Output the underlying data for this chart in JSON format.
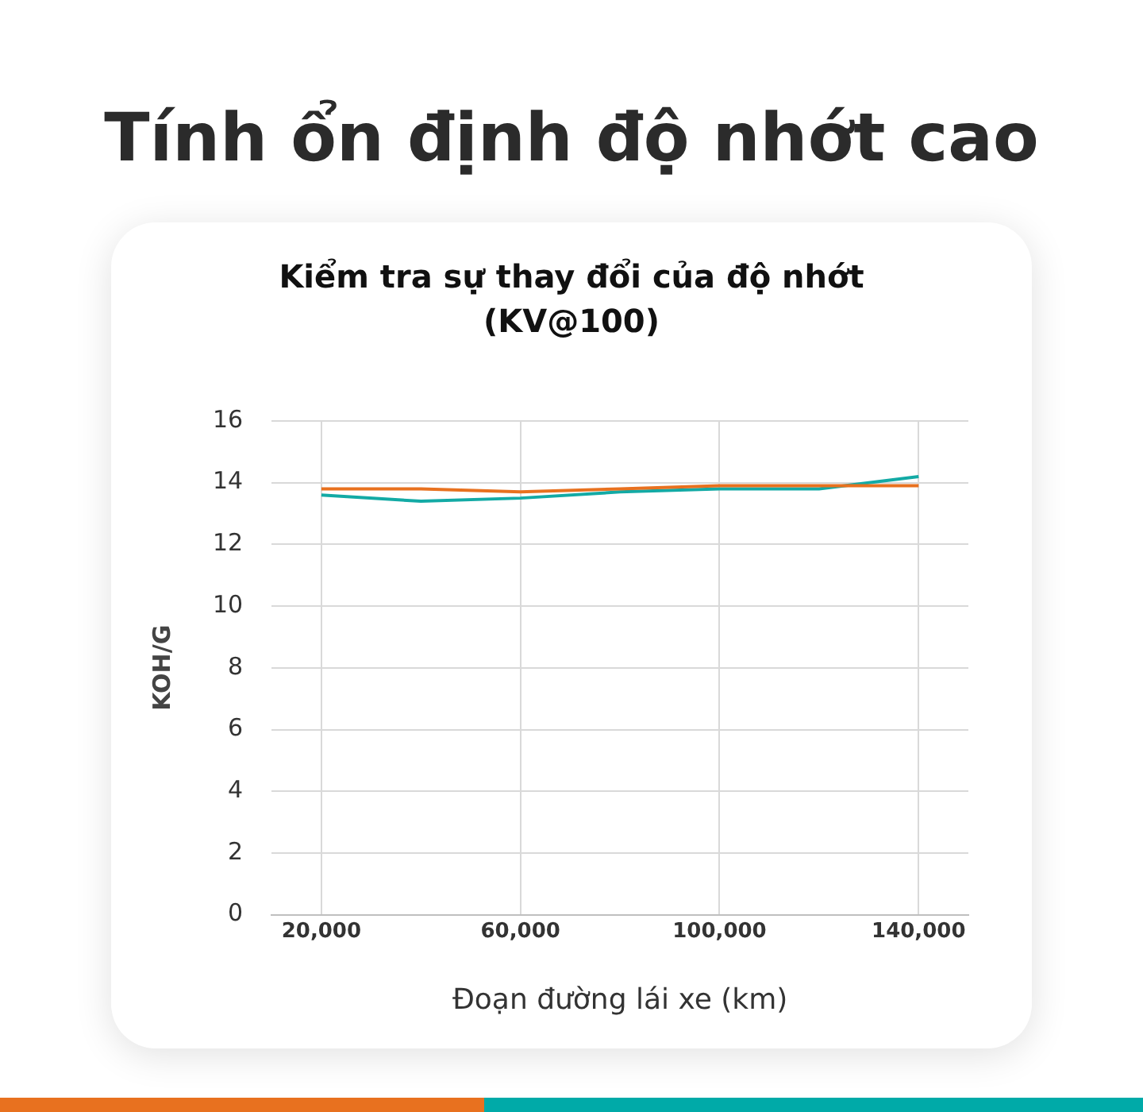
{
  "chart_data": {
    "type": "line",
    "title": "Tính ổn định độ nhớt cao",
    "subtitle": "Kiểm tra sự thay đổi của độ nhớt\n(KV@100)",
    "xlabel": "Đoạn đường lái xe (km)",
    "ylabel": "KOH/G",
    "x": [
      20000,
      40000,
      60000,
      80000,
      100000,
      120000,
      140000
    ],
    "series": [
      {
        "color": "#e8711f",
        "values": [
          13.8,
          13.8,
          13.7,
          13.8,
          13.9,
          13.9,
          13.9
        ]
      },
      {
        "color": "#13aaa5",
        "values": [
          13.6,
          13.4,
          13.5,
          13.7,
          13.8,
          13.8,
          14.2
        ]
      }
    ],
    "xlim": [
      10000,
      150000
    ],
    "xticks": [
      {
        "value": 20000,
        "label": "20,000"
      },
      {
        "value": 60000,
        "label": "60,000"
      },
      {
        "value": 100000,
        "label": "100,000"
      },
      {
        "value": 140000,
        "label": "140,000"
      }
    ],
    "ylim": [
      0,
      16
    ],
    "yticks": [
      0,
      2,
      4,
      6,
      8,
      10,
      12,
      14,
      16
    ],
    "grid": true,
    "marker": "none",
    "line_style": "solid"
  }
}
